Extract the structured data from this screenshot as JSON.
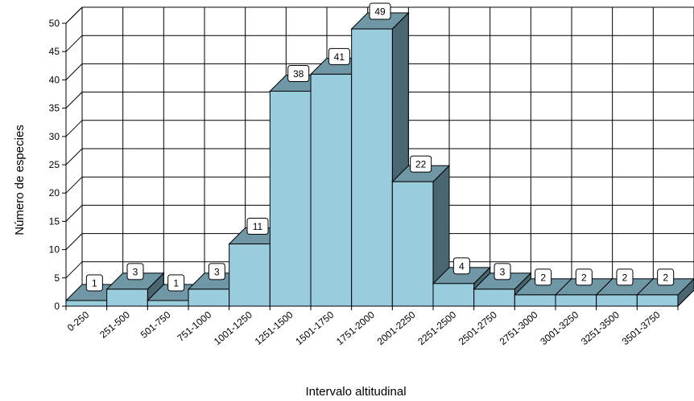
{
  "chart_data": {
    "type": "bar",
    "three_d": true,
    "categories": [
      "0-250",
      "251-500",
      "501-750",
      "751-1000",
      "1001-1250",
      "1251-1500",
      "1501-1750",
      "1751-2000",
      "2001-2250",
      "2251-2500",
      "2501-2750",
      "2751-3000",
      "3001-3250",
      "3251-3500",
      "3501-3750"
    ],
    "values": [
      1,
      3,
      1,
      3,
      11,
      38,
      41,
      49,
      22,
      4,
      3,
      2,
      2,
      2,
      2
    ],
    "title": "",
    "xlabel": "Intervalo altitudinal",
    "ylabel": "Número de especies",
    "ylim": [
      0,
      50
    ],
    "yticks": [
      0,
      5,
      10,
      15,
      20,
      25,
      30,
      35,
      40,
      45,
      50
    ],
    "grid": true,
    "data_labels": true,
    "legend": "none",
    "colors": {
      "bar_front": "#99CCDD",
      "bar_top": "#6F97A5",
      "bar_side": "#4A6670",
      "grid": "#000000"
    }
  }
}
